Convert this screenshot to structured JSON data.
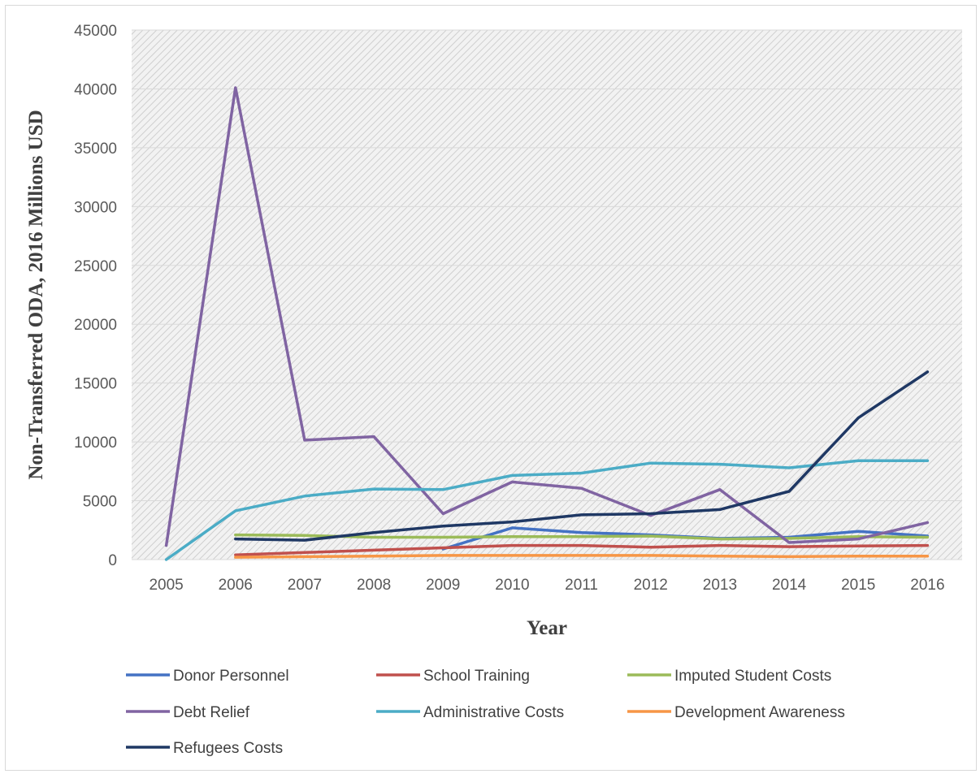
{
  "chart_data": {
    "type": "line",
    "title": "",
    "xlabel": "Year",
    "ylabel": "Non-Transferred ODA, 2016 Millions USD",
    "categories": [
      "2005",
      "2006",
      "2007",
      "2008",
      "2009",
      "2010",
      "2011",
      "2012",
      "2013",
      "2014",
      "2015",
      "2016"
    ],
    "ylim": [
      0,
      45000
    ],
    "yticks": [
      "0",
      "5000",
      "10000",
      "15000",
      "20000",
      "25000",
      "30000",
      "35000",
      "40000",
      "45000"
    ],
    "grid": true,
    "legend_position": "bottom",
    "series": [
      {
        "name": "Donor Personnel",
        "color": "#4472C4",
        "values": [
          null,
          null,
          null,
          null,
          900,
          2700,
          2300,
          2100,
          1800,
          1900,
          2400,
          2000
        ]
      },
      {
        "name": "School Training",
        "color": "#C0504D",
        "values": [
          null,
          400,
          600,
          800,
          1000,
          1200,
          1200,
          1050,
          1200,
          1100,
          1150,
          1200
        ]
      },
      {
        "name": "Imputed Student Costs",
        "color": "#9BBB59",
        "values": [
          null,
          2100,
          2050,
          1900,
          1900,
          1950,
          1950,
          2000,
          1750,
          1800,
          1950,
          1900
        ]
      },
      {
        "name": "Debt Relief",
        "color": "#8064A2",
        "values": [
          1200,
          40100,
          10150,
          10450,
          3900,
          6600,
          6050,
          3750,
          5950,
          1450,
          1750,
          3150
        ]
      },
      {
        "name": "Administrative Costs",
        "color": "#4BACC6",
        "values": [
          0,
          4150,
          5400,
          6000,
          5950,
          7150,
          7350,
          8200,
          8100,
          7800,
          8400,
          8400
        ]
      },
      {
        "name": "Development Awareness",
        "color": "#F79646",
        "values": [
          null,
          200,
          250,
          300,
          350,
          350,
          350,
          350,
          300,
          250,
          300,
          300
        ]
      },
      {
        "name": "Refugees Costs",
        "color": "#1F3864",
        "values": [
          null,
          1750,
          1650,
          2300,
          2850,
          3200,
          3800,
          3900,
          4250,
          5800,
          12050,
          15950
        ]
      }
    ]
  }
}
